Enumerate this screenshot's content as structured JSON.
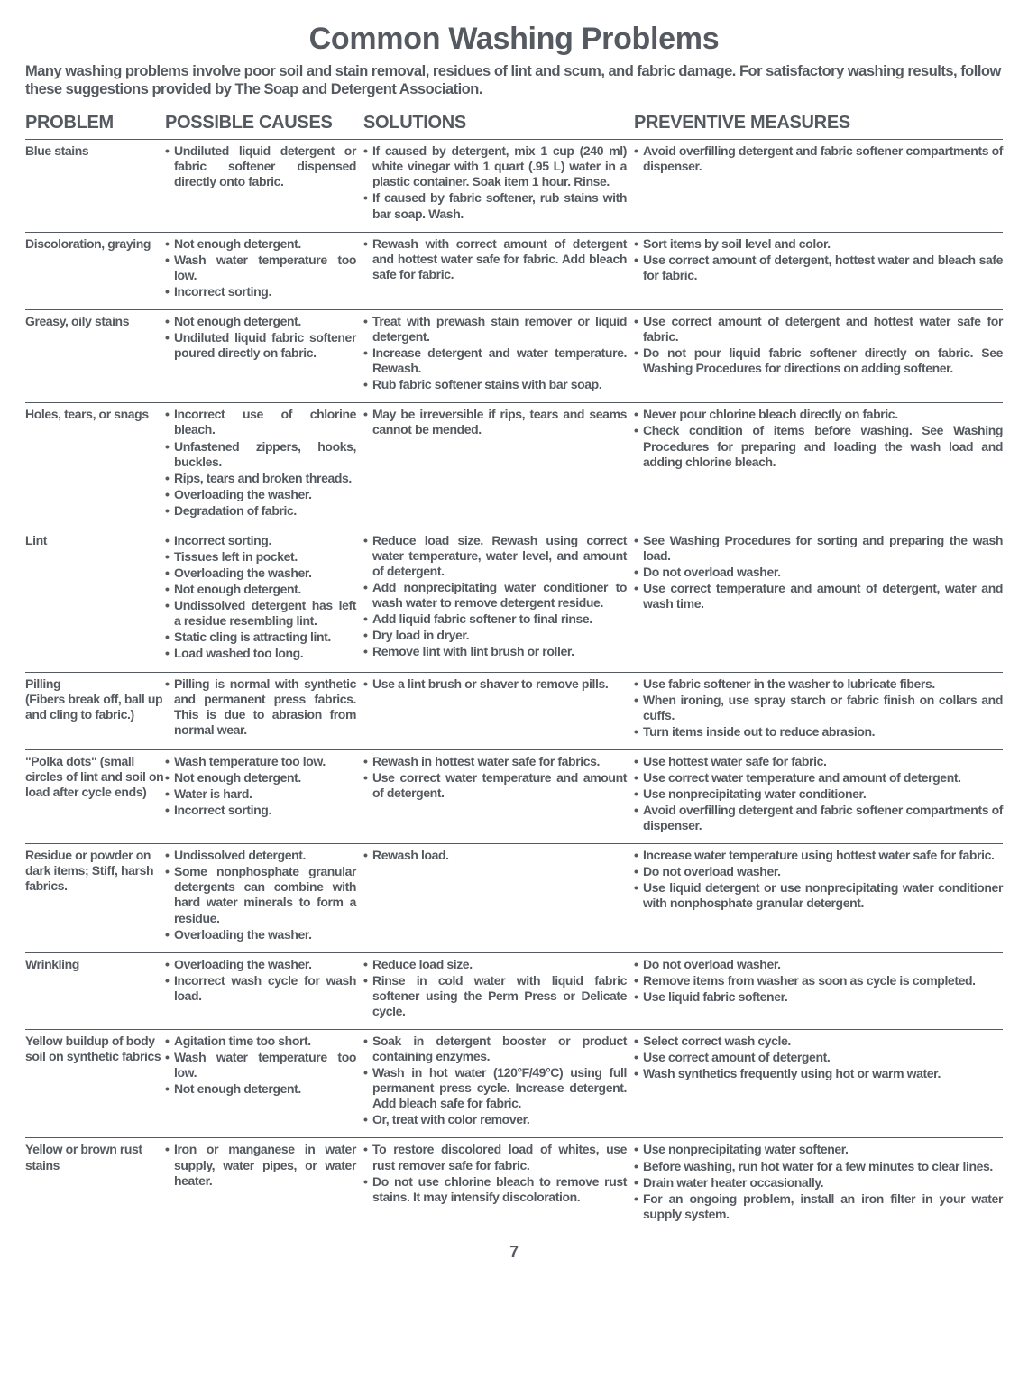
{
  "title": "Common Washing Problems",
  "intro": "Many washing problems involve poor soil and stain removal, residues of lint and scum, and fabric damage. For satisfactory washing results, follow these suggestions provided by The Soap and Detergent Association.",
  "headers": {
    "problem": "PROBLEM",
    "causes": "POSSIBLE CAUSES",
    "solutions": "SOLUTIONS",
    "prevent": "PREVENTIVE MEASURES"
  },
  "page_number": "7",
  "rows": [
    {
      "problem_main": "Blue stains",
      "problem_sub": "",
      "causes": [
        "Undiluted liquid detergent or fabric softener dispensed directly onto fabric."
      ],
      "solutions": [
        "If caused by detergent, mix 1 cup (240 ml) white vinegar with 1 quart (.95 L) water in a plastic container. Soak item 1 hour. Rinse.",
        "If caused by fabric softener, rub stains with bar soap. Wash."
      ],
      "prevent": [
        "Avoid overfilling detergent and fabric softener compartments of dispenser."
      ]
    },
    {
      "problem_main": "Discoloration, graying",
      "problem_sub": "",
      "causes": [
        "Not enough detergent.",
        "Wash water temperature too low.",
        "Incorrect sorting."
      ],
      "solutions": [
        "Rewash with correct amount of detergent and hottest water safe for fabric. Add bleach safe for fabric."
      ],
      "prevent": [
        "Sort items by soil level and color.",
        "Use correct amount of detergent, hottest water and bleach safe for fabric."
      ]
    },
    {
      "problem_main": "Greasy, oily stains",
      "problem_sub": "",
      "causes": [
        "Not enough detergent.",
        "Undiluted liquid fabric softener poured directly on fabric."
      ],
      "solutions": [
        "Treat with prewash stain remover or liquid detergent.",
        "Increase detergent and water temperature. Rewash.",
        "Rub fabric softener stains with bar soap."
      ],
      "prevent_html": "<li>Use correct amount of detergent and hottest water safe for fabric.</li><li><span class='strong'>Do not pour liquid fabric softener directly on fabric.</span> See <span class='strong'>Washing Procedures</span> for directions on adding softener.</li>"
    },
    {
      "problem_main": "Holes, tears, or snags",
      "problem_sub": "",
      "causes": [
        "Incorrect use of chlorine bleach.",
        "Unfastened zippers, hooks, buckles.",
        "Rips, tears and broken threads.",
        "Overloading the washer.",
        "Degradation of fabric."
      ],
      "solutions": [
        "May be irreversible if rips, tears and seams cannot be mended."
      ],
      "prevent_html": "<li>Never pour chlorine bleach directly on fabric.</li><li>Check condition of items before washing. See <span class='strong'>Washing Procedures</span> for preparing and loading the wash load and adding chlorine bleach.</li>"
    },
    {
      "problem_main": "Lint",
      "problem_sub": "",
      "causes": [
        "Incorrect sorting.",
        "Tissues left in pocket.",
        "Overloading the washer.",
        "Not enough detergent.",
        "Undissolved detergent has left a residue resembling lint.",
        "Static cling is attracting lint.",
        "Load washed too long."
      ],
      "solutions": [
        "Reduce load size. Rewash using correct water temperature, water level, and amount of detergent.",
        "Add nonprecipitating water conditioner to wash water to remove detergent residue.",
        "Add liquid fabric softener to final rinse.",
        "Dry load in dryer.",
        "Remove lint with lint brush or roller."
      ],
      "prevent_html": "<li>See <span class='strong'>Washing Procedures</span> for sorting and preparing the wash load.</li><li>Do not overload washer.</li><li>Use correct temperature and amount of detergent, water and wash time.</li>"
    },
    {
      "problem_main": "Pilling",
      "problem_sub": "(Fibers break off, ball up and cling to fabric.)",
      "causes": [
        "Pilling is normal with synthetic and permanent press fabrics. This is due to abrasion from normal wear."
      ],
      "solutions": [
        "Use a lint brush or shaver to remove pills."
      ],
      "prevent": [
        "Use fabric softener in the washer to lubricate fibers.",
        "When ironing, use spray starch or fabric finish on collars and cuffs.",
        "Turn items inside out to reduce abrasion."
      ]
    },
    {
      "problem_main": "\"Polka dots\"",
      "problem_sub": " (small circles of lint and soil on load after cycle ends)",
      "causes": [
        "Wash temperature too low.",
        "Not enough detergent.",
        "Water is hard.",
        "Incorrect sorting."
      ],
      "solutions": [
        "Rewash in hottest water safe for fabrics.",
        "Use correct water temperature and amount of detergent."
      ],
      "prevent": [
        "Use hottest water safe for fabric.",
        "Use correct water temperature and amount of detergent.",
        "Use nonprecipitating water conditioner.",
        "Avoid overfilling detergent and fabric softener compartments of dispenser."
      ]
    },
    {
      "problem_main": "Residue or powder on dark items; Stiff, harsh fabrics.",
      "problem_sub": "",
      "causes": [
        "Undissolved detergent.",
        "Some nonphosphate granular detergents can combine with hard water minerals to form a residue.",
        "Overloading the washer."
      ],
      "solutions": [
        "Rewash load."
      ],
      "prevent": [
        "Increase water temperature using hottest water safe for fabric.",
        "Do not overload washer.",
        "Use liquid detergent or use nonprecipitating water conditioner with nonphosphate granular detergent."
      ]
    },
    {
      "problem_main": "Wrinkling",
      "problem_sub": "",
      "causes": [
        "Overloading the washer.",
        "Incorrect wash cycle for wash load."
      ],
      "solutions": [
        "Reduce load size.",
        "Rinse in cold water with liquid fabric softener using the Perm Press or Delicate cycle."
      ],
      "prevent": [
        "Do not overload washer.",
        "Remove items from washer as soon as cycle is completed.",
        "Use liquid fabric softener."
      ]
    },
    {
      "problem_main": "Yellow buildup of body soil on synthetic fabrics",
      "problem_sub": "",
      "causes": [
        "Agitation time too short.",
        "Wash water temperature too low.",
        "Not enough detergent."
      ],
      "solutions": [
        "Soak in detergent booster or product containing enzymes.",
        "Wash in hot water (120°F/49°C) using full permanent press cycle. Increase detergent. Add bleach safe for fabric.",
        "Or, treat with color remover."
      ],
      "prevent": [
        "Select correct wash cycle.",
        "Use correct amount of detergent.",
        "Wash synthetics frequently using hot or warm water."
      ]
    },
    {
      "problem_main": "Yellow or brown rust stains",
      "problem_sub": "",
      "causes": [
        "Iron or manganese in water supply, water pipes, or water heater."
      ],
      "solutions_html": "<li>To restore discolored load of whites, use rust remover safe for fabric.</li><li><span class='strong'>Do not use chlorine bleach to remove rust stains. It may intensify discoloration.</span></li>",
      "prevent": [
        "Use nonprecipitating water softener.",
        "Before washing, run hot water for a few minutes to clear lines.",
        "Drain water heater occasionally.",
        "For an ongoing problem, install an iron filter in your water supply system."
      ]
    }
  ]
}
